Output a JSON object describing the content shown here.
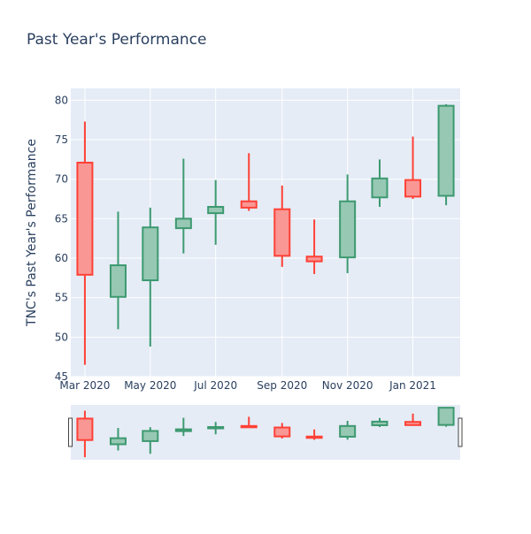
{
  "chart_data": {
    "type": "candlestick",
    "title": "Past Year's Performance",
    "ylabel": "TNC's Past Year's Performance",
    "xlabel": "",
    "ylim": [
      45,
      81.5
    ],
    "yticks": [
      45,
      50,
      55,
      60,
      65,
      70,
      75,
      80
    ],
    "xticks": [
      "Mar 2020",
      "May 2020",
      "Jul 2020",
      "Sep 2020",
      "Nov 2020",
      "Jan 2021"
    ],
    "grid": true,
    "legend": false,
    "rangeslider": true,
    "colors": {
      "increasing_line": "#3d9970",
      "increasing_fill": "#96c8b3",
      "decreasing_line": "#ff4136",
      "decreasing_fill": "#f99794",
      "plot_bg": "#e5ecf6",
      "grid": "#ffffff",
      "text": "#2a3f5f"
    },
    "candles": [
      {
        "date": "2020-03",
        "open": 72.1,
        "high": 77.3,
        "low": 46.5,
        "close": 57.9
      },
      {
        "date": "2020-04",
        "open": 55.1,
        "high": 65.9,
        "low": 51.0,
        "close": 59.1
      },
      {
        "date": "2020-05",
        "open": 57.2,
        "high": 66.4,
        "low": 48.8,
        "close": 63.9
      },
      {
        "date": "2020-06",
        "open": 63.8,
        "high": 72.6,
        "low": 60.6,
        "close": 65.0
      },
      {
        "date": "2020-07",
        "open": 65.7,
        "high": 69.9,
        "low": 61.7,
        "close": 66.5
      },
      {
        "date": "2020-08",
        "open": 67.2,
        "high": 73.3,
        "low": 66.0,
        "close": 66.4
      },
      {
        "date": "2020-09",
        "open": 66.2,
        "high": 69.2,
        "low": 58.9,
        "close": 60.3
      },
      {
        "date": "2020-10",
        "open": 60.2,
        "high": 64.9,
        "low": 58.0,
        "close": 59.6
      },
      {
        "date": "2020-11",
        "open": 60.1,
        "high": 70.6,
        "low": 58.1,
        "close": 67.2
      },
      {
        "date": "2020-12",
        "open": 67.7,
        "high": 72.5,
        "low": 66.5,
        "close": 70.1
      },
      {
        "date": "2021-01",
        "open": 69.9,
        "high": 75.4,
        "low": 67.5,
        "close": 67.8
      },
      {
        "date": "2021-02",
        "open": 67.9,
        "high": 79.5,
        "low": 66.7,
        "close": 79.3
      }
    ]
  }
}
